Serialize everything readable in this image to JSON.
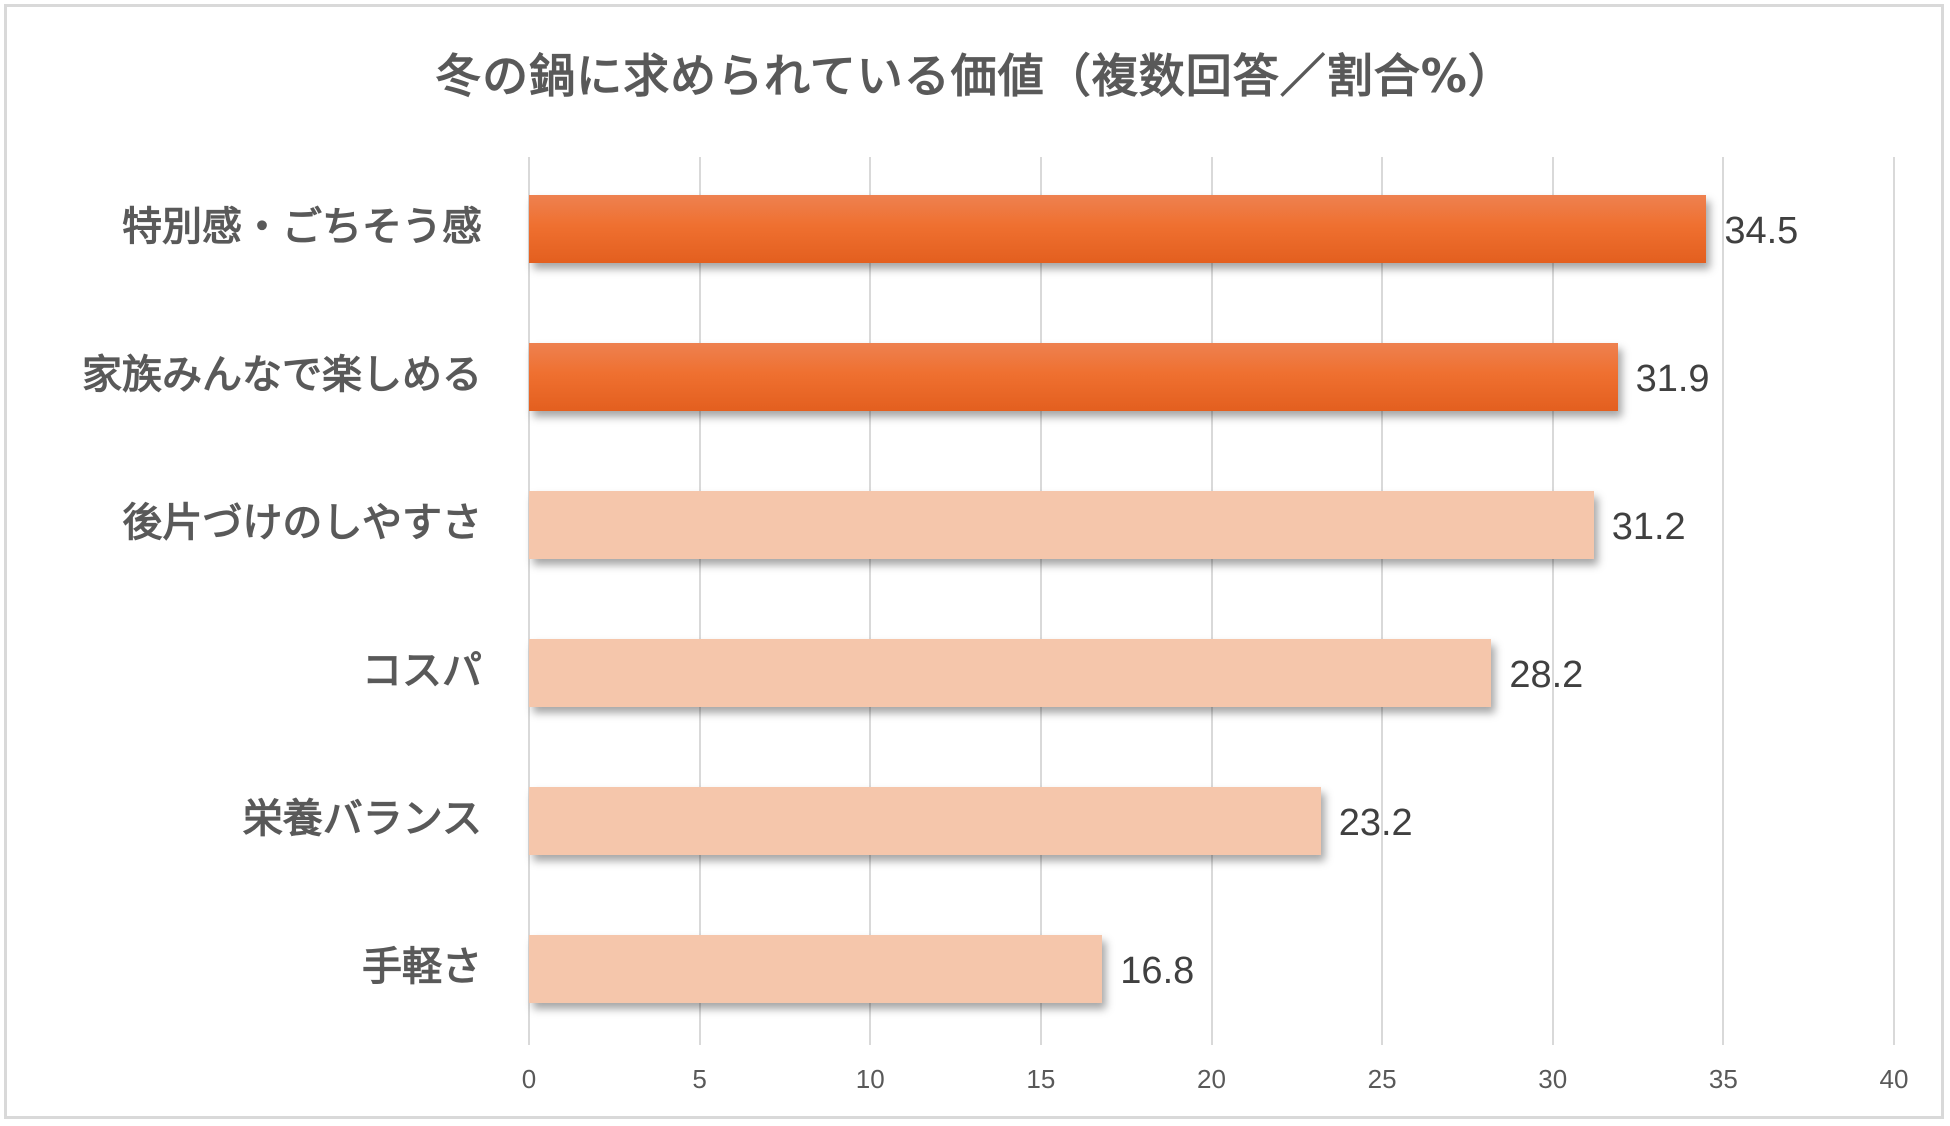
{
  "chart_data": {
    "type": "bar",
    "orientation": "horizontal",
    "title": "冬の鍋に求められている価値（複数回答／割合%）",
    "xlabel": "",
    "ylabel": "",
    "xlim": [
      0,
      40
    ],
    "x_ticks": [
      "0",
      "5",
      "10",
      "15",
      "20",
      "25",
      "30",
      "35",
      "40"
    ],
    "grid": "vertical",
    "legend": null,
    "categories": [
      "特別感・ごちそう感",
      "家族みんなで楽しめる",
      "後片づけのしやすさ",
      "コスパ",
      "栄養バランス",
      "手軽さ"
    ],
    "values": [
      34.5,
      31.9,
      31.2,
      28.2,
      23.2,
      16.8
    ],
    "value_labels": [
      "34.5",
      "31.9",
      "31.2",
      "28.2",
      "23.2",
      "16.8"
    ],
    "highlight_colors": [
      "#ef7030",
      "#ef7030",
      "#f5c6ab",
      "#f5c6ab",
      "#f5c6ab",
      "#f5c6ab"
    ],
    "highlighted": [
      true,
      true,
      false,
      false,
      false,
      false
    ]
  }
}
